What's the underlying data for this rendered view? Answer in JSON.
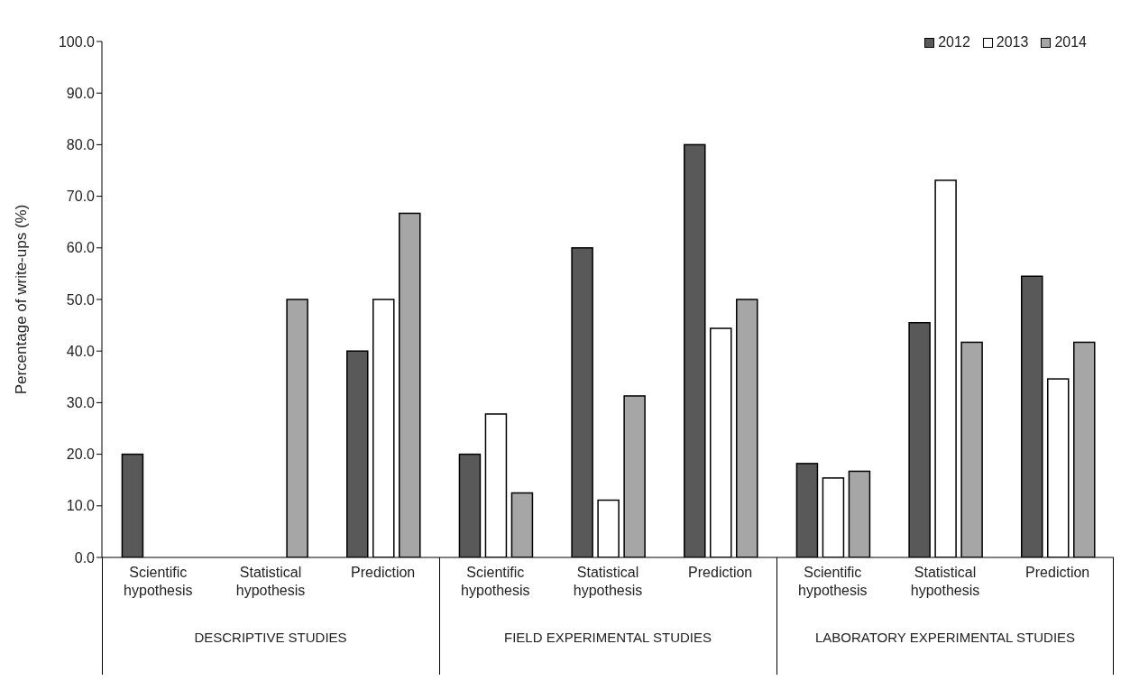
{
  "chart_data": {
    "type": "bar",
    "ylabel": "Percentage of write-ups (%)",
    "categories": [
      "Scientific hypothesis",
      "Statistical hypothesis",
      "Prediction",
      "Scientific hypothesis",
      "Statistical hypothesis",
      "Prediction",
      "Scientific hypothesis",
      "Statistical hypothesis",
      "Prediction"
    ],
    "annotations": [
      "DESCRIPTIVE STUDIES",
      "FIELD EXPERIMENTAL STUDIES",
      "LABORATORY EXPERIMENTAL STUDIES"
    ],
    "series": [
      {
        "name": "2012",
        "color": "#595959",
        "values": [
          20,
          null,
          40,
          20,
          60,
          80,
          18.2,
          45.5,
          54.5
        ]
      },
      {
        "name": "2013",
        "color": "#ffffff",
        "values": [
          null,
          null,
          50,
          27.8,
          11.1,
          44.4,
          15.4,
          73.1,
          34.6
        ]
      },
      {
        "name": "2014",
        "color": "#a6a6a6",
        "values": [
          null,
          50,
          66.7,
          12.5,
          31.3,
          50,
          16.7,
          41.7,
          41.7
        ]
      }
    ],
    "ylim": [
      0,
      100
    ],
    "yticks": [
      {
        "value": 0,
        "label": "0.0"
      },
      {
        "value": 10,
        "label": "10.0"
      },
      {
        "value": 20,
        "label": "20.0"
      },
      {
        "value": 30,
        "label": "30.0"
      },
      {
        "value": 40,
        "label": "40.0"
      },
      {
        "value": 50,
        "label": "50.0"
      },
      {
        "value": 60,
        "label": "60.0"
      },
      {
        "value": 70,
        "label": "70.0"
      },
      {
        "value": 80,
        "label": "80.0"
      },
      {
        "value": 90,
        "label": "90.0"
      },
      {
        "value": 100,
        "label": "100.0"
      }
    ],
    "grid": false,
    "legend": "top right"
  }
}
